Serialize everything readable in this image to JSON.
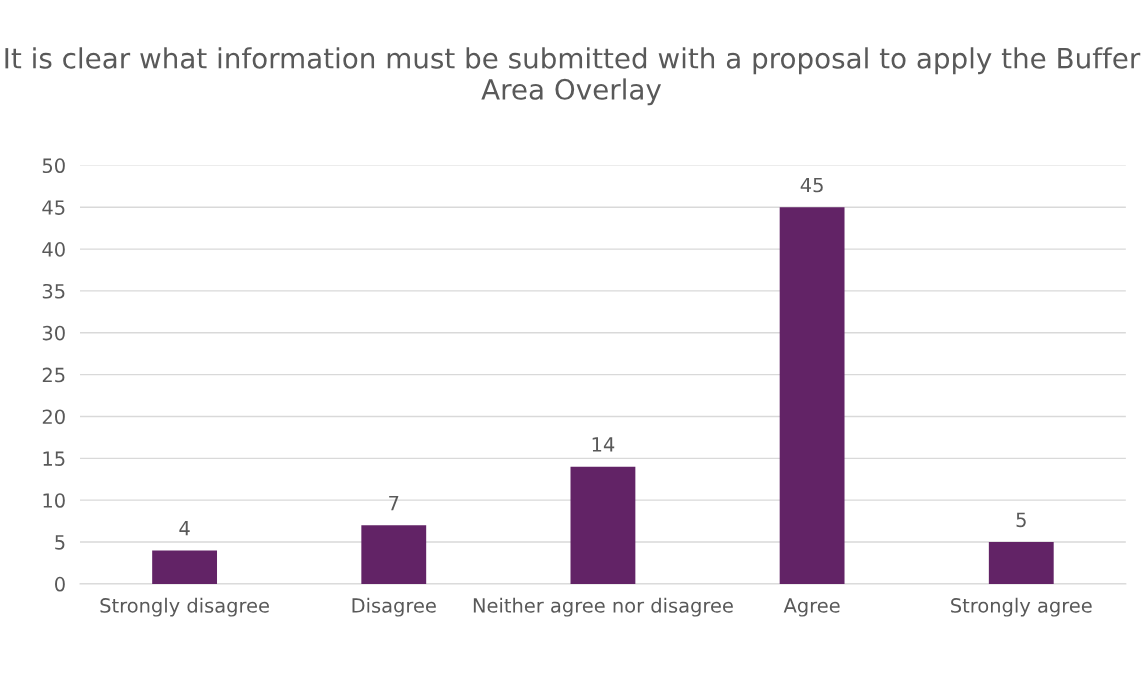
{
  "chart_data": {
    "type": "bar",
    "title": "It is clear what information must be submitted with a proposal to apply the Buffer Area Overlay",
    "categories": [
      "Strongly disagree",
      "Disagree",
      "Neither agree nor disagree",
      "Agree",
      "Strongly agree"
    ],
    "values": [
      4,
      7,
      14,
      45,
      5
    ],
    "color": "#622366",
    "ylim": [
      0,
      50
    ],
    "yticks": [
      0,
      5,
      10,
      15,
      20,
      25,
      30,
      35,
      40,
      45,
      50
    ],
    "grid": "y",
    "data_labels": true
  }
}
